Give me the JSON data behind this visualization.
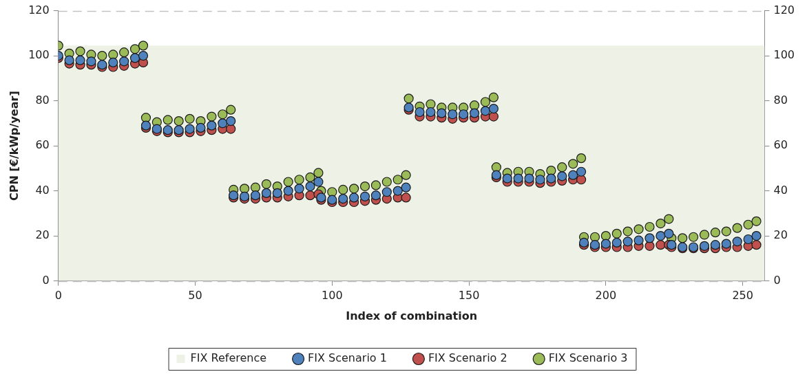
{
  "chart_data": {
    "type": "scatter",
    "xlabel": "Index of combination",
    "ylabel": "CPN [€/kWp/year]",
    "x": [
      0,
      4,
      8,
      12,
      16,
      20,
      24,
      28,
      31,
      32,
      36,
      40,
      44,
      48,
      52,
      56,
      60,
      63,
      64,
      68,
      72,
      76,
      80,
      84,
      88,
      92,
      95,
      96,
      100,
      104,
      108,
      112,
      116,
      120,
      124,
      127,
      128,
      132,
      136,
      140,
      144,
      148,
      152,
      156,
      159,
      160,
      164,
      168,
      172,
      176,
      180,
      184,
      188,
      191,
      192,
      196,
      200,
      204,
      208,
      212,
      216,
      220,
      223,
      224,
      228,
      232,
      236,
      240,
      244,
      248,
      252,
      255
    ],
    "series": [
      {
        "name": "FIX Reference",
        "type": "area",
        "marker": "none",
        "color": "#eef2e6",
        "x": [
          0,
          258
        ],
        "values": [
          104.5,
          104.5
        ]
      },
      {
        "name": "FIX Scenario 1",
        "color": "#4f81bd",
        "values": [
          100,
          98,
          98,
          97.5,
          96,
          97,
          97.5,
          99,
          100,
          69,
          67.5,
          67,
          67,
          67.5,
          68,
          69,
          70,
          71,
          38,
          37.5,
          38,
          39,
          39,
          40,
          41,
          42,
          44,
          37,
          36,
          36.5,
          37,
          37.5,
          38,
          39.5,
          40,
          41.5,
          77,
          75,
          75,
          74.5,
          74,
          74,
          74.5,
          75.5,
          76.5,
          47,
          45.5,
          45.5,
          45.5,
          45,
          45.5,
          46.5,
          47,
          48.5,
          17,
          16,
          16.5,
          17,
          17.5,
          18,
          19,
          20,
          21,
          16,
          15,
          15,
          15.5,
          16,
          16.5,
          17.5,
          18.5,
          20
        ]
      },
      {
        "name": "FIX Scenario 2",
        "color": "#c0504d",
        "values": [
          99,
          96.5,
          96,
          96,
          95,
          95,
          95.5,
          96.5,
          97,
          68,
          66.5,
          66,
          66,
          66,
          66.5,
          67,
          67.5,
          67.5,
          37,
          36.5,
          36.5,
          37,
          37,
          37.5,
          38,
          38,
          38.5,
          36,
          35,
          35,
          35,
          35.5,
          36,
          36.5,
          37,
          37,
          76,
          73,
          73,
          72.5,
          72,
          72.5,
          72.5,
          73,
          73,
          46,
          44,
          44,
          44,
          43.5,
          44,
          44.5,
          45,
          45,
          16,
          15,
          15,
          15,
          15,
          15.5,
          15.5,
          16,
          16,
          15,
          14.5,
          14.5,
          14.5,
          14.5,
          15,
          15,
          15.5,
          16
        ]
      },
      {
        "name": "FIX Scenario 3",
        "color": "#9bbb59",
        "values": [
          104.5,
          101,
          102,
          100.5,
          100,
          100.5,
          101.5,
          103,
          104.5,
          72.5,
          70.5,
          71.5,
          71,
          72,
          71,
          73,
          74,
          76,
          40.5,
          41,
          41.5,
          43,
          42,
          44,
          45,
          46,
          48,
          40,
          39.5,
          40.5,
          41,
          42,
          42.5,
          44,
          45,
          47,
          81,
          77.5,
          78.5,
          77,
          77,
          77,
          78,
          79.5,
          81.5,
          50.5,
          48,
          48.5,
          48.5,
          47.5,
          49,
          50.5,
          52,
          54.5,
          19.5,
          19.5,
          20,
          21,
          22,
          23,
          24,
          25.5,
          27.5,
          19,
          19,
          19.5,
          20.5,
          21.5,
          22,
          23.5,
          25,
          26.5
        ]
      }
    ],
    "xlim": [
      0,
      258
    ],
    "xticks": [
      0,
      50,
      100,
      150,
      200,
      250
    ],
    "ylim": [
      0,
      120
    ],
    "yticks": [
      0,
      20,
      40,
      60,
      80,
      100,
      120
    ],
    "y2lim": [
      0,
      120
    ],
    "y2ticks": [
      0,
      20,
      40,
      60,
      80,
      100,
      120
    ],
    "grid": "y",
    "legend": "bottom",
    "marker": "circle"
  }
}
